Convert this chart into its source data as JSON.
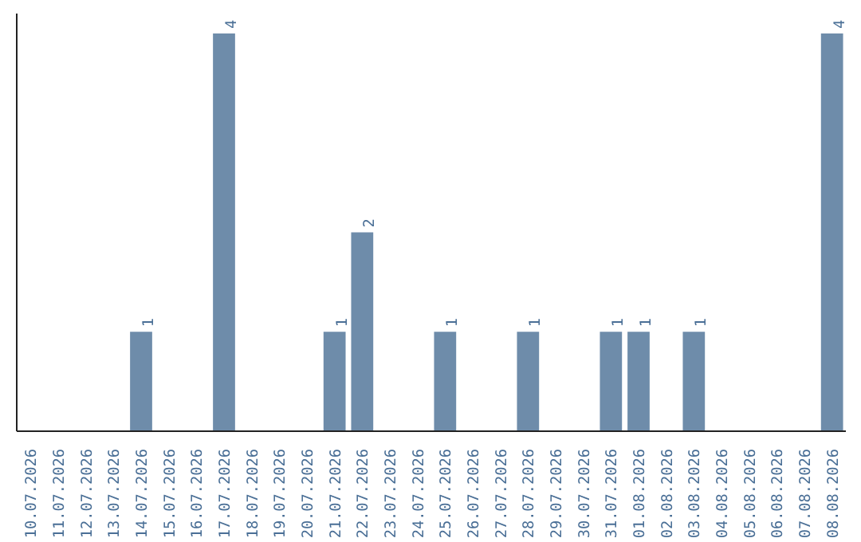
{
  "chart_data": {
    "type": "bar",
    "categories": [
      "10.07.2026",
      "11.07.2026",
      "12.07.2026",
      "13.07.2026",
      "14.07.2026",
      "15.07.2026",
      "16.07.2026",
      "17.07.2026",
      "18.07.2026",
      "19.07.2026",
      "20.07.2026",
      "21.07.2026",
      "22.07.2026",
      "23.07.2026",
      "24.07.2026",
      "25.07.2026",
      "26.07.2026",
      "27.07.2026",
      "28.07.2026",
      "29.07.2026",
      "30.07.2026",
      "31.07.2026",
      "01.08.2026",
      "02.08.2026",
      "03.08.2026",
      "04.08.2026",
      "05.08.2026",
      "06.08.2026",
      "07.08.2026",
      "08.08.2026"
    ],
    "values": [
      null,
      null,
      null,
      null,
      1,
      null,
      null,
      4,
      null,
      null,
      null,
      1,
      2,
      null,
      null,
      1,
      null,
      null,
      1,
      null,
      null,
      1,
      1,
      null,
      1,
      null,
      null,
      null,
      null,
      4
    ],
    "color": "#6e8caa",
    "data_labels": true,
    "grid": false
  }
}
